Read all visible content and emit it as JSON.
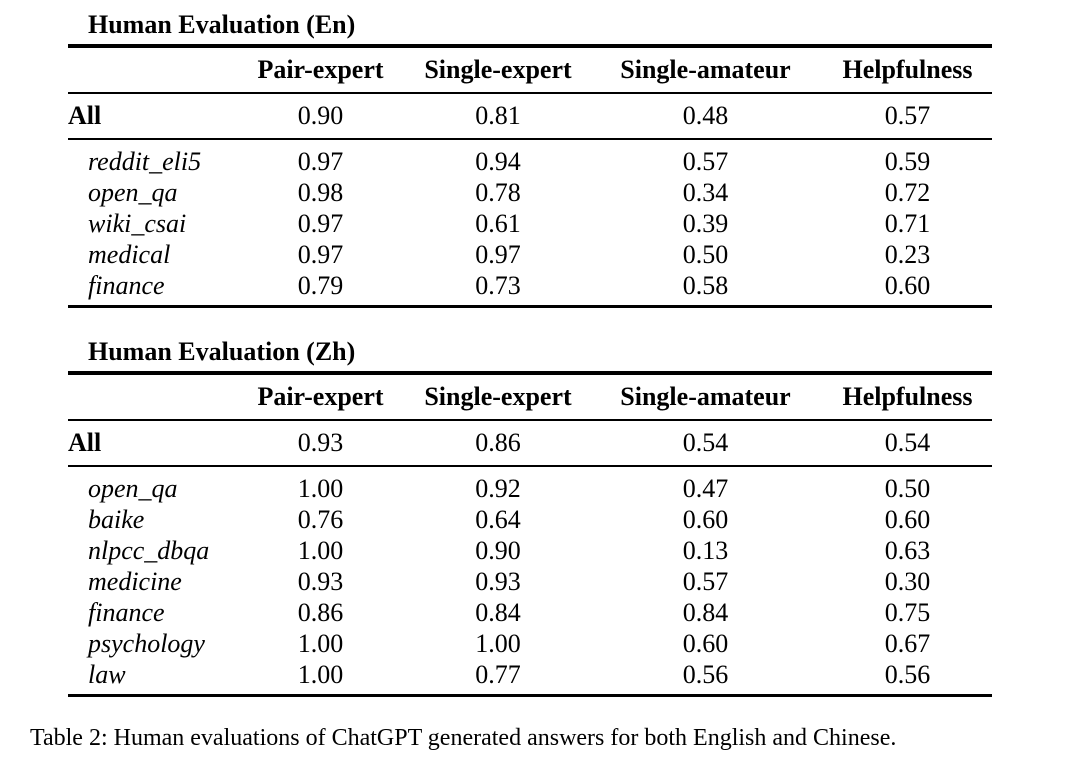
{
  "page": {
    "background": "#ffffff",
    "text_color": "#000000"
  },
  "caption": "Table 2: Human evaluations of ChatGPT generated answers for both English and Chinese.",
  "tables": [
    {
      "title": "Human Evaluation (En)",
      "columns": [
        "",
        "Pair-expert",
        "Single-expert",
        "Single-amateur",
        "Helpfulness"
      ],
      "all_row": {
        "label": "All",
        "values": [
          "0.90",
          "0.81",
          "0.48",
          "0.57"
        ]
      },
      "rows": [
        {
          "label": "reddit_eli5",
          "values": [
            "0.97",
            "0.94",
            "0.57",
            "0.59"
          ]
        },
        {
          "label": "open_qa",
          "values": [
            "0.98",
            "0.78",
            "0.34",
            "0.72"
          ]
        },
        {
          "label": "wiki_csai",
          "values": [
            "0.97",
            "0.61",
            "0.39",
            "0.71"
          ]
        },
        {
          "label": "medical",
          "values": [
            "0.97",
            "0.97",
            "0.50",
            "0.23"
          ]
        },
        {
          "label": "finance",
          "values": [
            "0.79",
            "0.73",
            "0.58",
            "0.60"
          ]
        }
      ]
    },
    {
      "title": "Human Evaluation (Zh)",
      "columns": [
        "",
        "Pair-expert",
        "Single-expert",
        "Single-amateur",
        "Helpfulness"
      ],
      "all_row": {
        "label": "All",
        "values": [
          "0.93",
          "0.86",
          "0.54",
          "0.54"
        ]
      },
      "rows": [
        {
          "label": "open_qa",
          "values": [
            "1.00",
            "0.92",
            "0.47",
            "0.50"
          ]
        },
        {
          "label": "baike",
          "values": [
            "0.76",
            "0.64",
            "0.60",
            "0.60"
          ]
        },
        {
          "label": "nlpcc_dbqa",
          "values": [
            "1.00",
            "0.90",
            "0.13",
            "0.63"
          ]
        },
        {
          "label": "medicine",
          "values": [
            "0.93",
            "0.93",
            "0.57",
            "0.30"
          ]
        },
        {
          "label": "finance",
          "values": [
            "0.86",
            "0.84",
            "0.84",
            "0.75"
          ]
        },
        {
          "label": "psychology",
          "values": [
            "1.00",
            "1.00",
            "0.60",
            "0.67"
          ]
        },
        {
          "label": "law",
          "values": [
            "1.00",
            "0.77",
            "0.56",
            "0.56"
          ]
        }
      ]
    }
  ]
}
